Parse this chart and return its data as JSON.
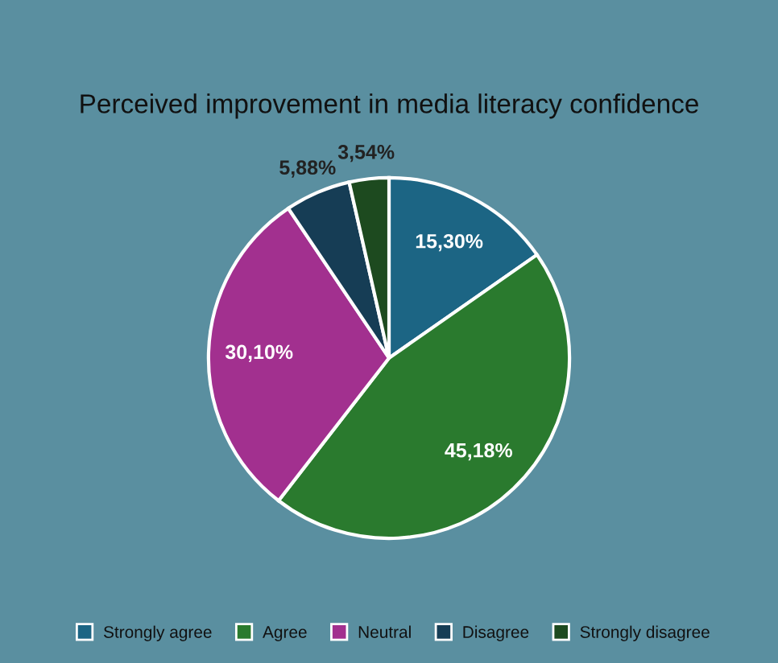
{
  "chart_data": {
    "type": "pie",
    "title": "Perceived improvement in media literacy confidence",
    "categories": [
      "Strongly agree",
      "Agree",
      "Neutral",
      "Disagree",
      "Strongly disagree"
    ],
    "values": [
      15.3,
      45.18,
      30.1,
      5.88,
      3.54
    ],
    "value_labels": [
      "15,30%",
      "45,18%",
      "30,10%",
      "5,88%",
      "3,54%"
    ],
    "colors": [
      "#1c6584",
      "#2a7a2e",
      "#a2308f",
      "#163d55",
      "#1d4a1f"
    ],
    "legend": "bottom"
  }
}
